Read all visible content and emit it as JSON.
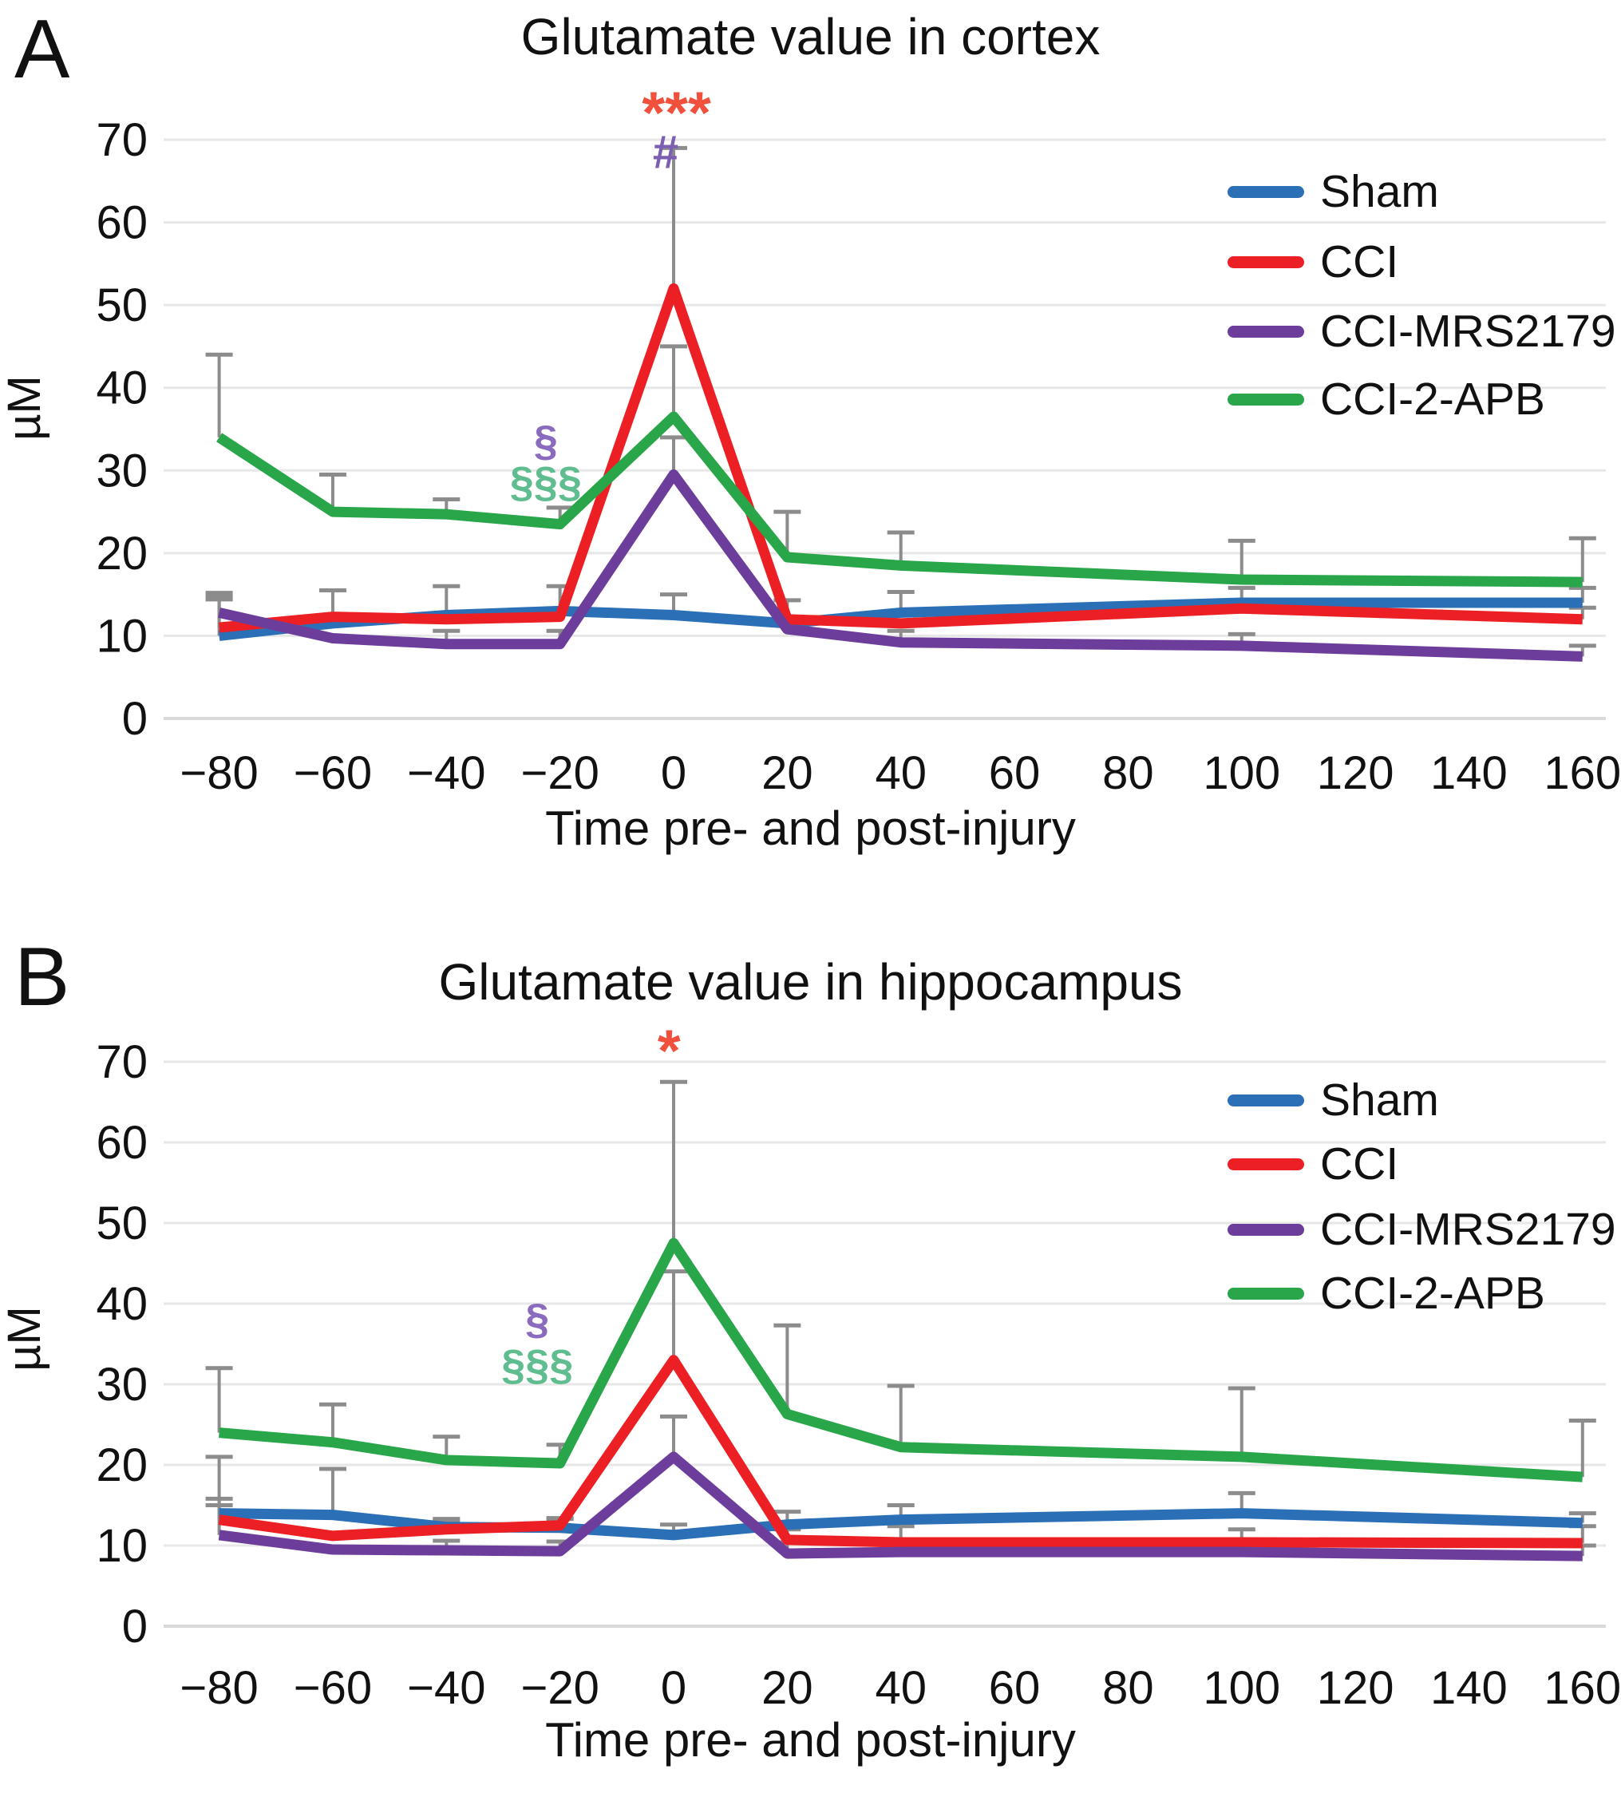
{
  "panels": [
    {
      "letter": "A"
    },
    {
      "letter": "B"
    }
  ],
  "chart_data": [
    {
      "type": "line",
      "title": "Glutamate value in cortex",
      "xlabel": "Time pre- and post-injury",
      "ylabel": "µM",
      "ylim": [
        0,
        70
      ],
      "xlim": [
        -90,
        167
      ],
      "grid": true,
      "legend_position": "top-right",
      "y_ticks": [
        0,
        10,
        20,
        30,
        40,
        50,
        60,
        70
      ],
      "y_ticklabels": [
        "0",
        "10",
        "20",
        "30",
        "40",
        "50",
        "60",
        "70"
      ],
      "x_ticks": [
        -80,
        -60,
        -40,
        -20,
        0,
        20,
        40,
        60,
        80,
        100,
        120,
        140,
        160
      ],
      "x_ticklabels": [
        "−80",
        "−60",
        "−40",
        "−20",
        "0",
        "20",
        "40",
        "60",
        "80",
        "100",
        "120",
        "140",
        "160"
      ],
      "x": [
        -80,
        -60,
        -40,
        -20,
        0,
        20,
        40,
        100,
        160
      ],
      "series": [
        {
          "name": "Sham",
          "color": "#2B70B7",
          "values": [
            10,
            11.5,
            12.5,
            13,
            12.5,
            11.5,
            12.8,
            14,
            14
          ],
          "error_upper": [
            14.8,
            15.5,
            16,
            16,
            15,
            14.3,
            15.3,
            15.8,
            15.8
          ]
        },
        {
          "name": "CCI",
          "color": "#EC2024",
          "values": [
            11,
            12.3,
            12,
            12.3,
            52,
            12,
            11.5,
            13.3,
            12
          ],
          "error_upper": [
            14.4,
            null,
            null,
            null,
            69,
            null,
            null,
            null,
            13.4
          ]
        },
        {
          "name": "CCI-MRS2179",
          "color": "#6C3D9B",
          "values": [
            12.8,
            9.7,
            9,
            9,
            29.5,
            10.8,
            9.2,
            8.8,
            7.5
          ],
          "error_upper": [
            15.2,
            null,
            10.6,
            10.6,
            34,
            null,
            10.6,
            10.2,
            8.8
          ]
        },
        {
          "name": "CCI-2-APB",
          "color": "#2AA64A",
          "values": [
            34,
            25,
            24.7,
            23.5,
            36.5,
            19.5,
            18.5,
            16.8,
            16.5
          ],
          "error_upper": [
            44,
            29.5,
            26.5,
            25.5,
            45,
            25,
            22.5,
            21.5,
            21.8
          ]
        }
      ],
      "annotations": [
        {
          "text": "***",
          "x": 0.5,
          "y": 73.4,
          "color": "#F0503C"
        },
        {
          "text": "#",
          "x": -1.4,
          "y": 68.6,
          "color": "#7D5FB2"
        },
        {
          "text": "§",
          "x": -22.5,
          "y": 33.7,
          "color": "#8A6BBE"
        },
        {
          "text": "§§§",
          "x": -22.5,
          "y": 28.7,
          "color": "#5FBD8F"
        }
      ]
    },
    {
      "type": "line",
      "title": "Glutamate value in hippocampus",
      "xlabel": "Time pre- and post-injury",
      "ylabel": "µM",
      "ylim": [
        0,
        70
      ],
      "xlim": [
        -90,
        167
      ],
      "grid": true,
      "legend_position": "top-right",
      "y_ticks": [
        0,
        10,
        20,
        30,
        40,
        50,
        60,
        70
      ],
      "y_ticklabels": [
        "0",
        "10",
        "20",
        "30",
        "40",
        "50",
        "60",
        "70"
      ],
      "x_ticks": [
        -80,
        -60,
        -40,
        -20,
        0,
        20,
        40,
        60,
        80,
        100,
        120,
        140,
        160
      ],
      "x_ticklabels": [
        "−80",
        "−60",
        "−40",
        "−20",
        "0",
        "20",
        "40",
        "60",
        "80",
        "100",
        "120",
        "140",
        "160"
      ],
      "x": [
        -80,
        -60,
        -40,
        -20,
        0,
        20,
        40,
        100,
        160
      ],
      "series": [
        {
          "name": "Sham",
          "color": "#2B70B7",
          "values": [
            14,
            13.8,
            12.3,
            12.2,
            11.3,
            12.6,
            13.2,
            14,
            12.8
          ],
          "error_upper": [
            21,
            19.5,
            13.3,
            13.4,
            12.6,
            14.2,
            15,
            16.5,
            14
          ]
        },
        {
          "name": "CCI",
          "color": "#EC2024",
          "values": [
            13.2,
            11.2,
            12,
            12.5,
            33,
            10.7,
            10.4,
            10.4,
            10.3
          ],
          "error_upper": [
            15.8,
            null,
            13,
            13.3,
            44,
            12,
            12.4,
            12,
            12.4
          ]
        },
        {
          "name": "CCI-MRS2179",
          "color": "#6C3D9B",
          "values": [
            11.3,
            9.5,
            9.4,
            9.3,
            21,
            9,
            9.2,
            9.2,
            8.7
          ],
          "error_upper": [
            15,
            null,
            10.6,
            10.5,
            26,
            10.4,
            null,
            null,
            10
          ]
        },
        {
          "name": "CCI-2-APB",
          "color": "#2AA64A",
          "values": [
            24,
            22.8,
            20.6,
            20.2,
            47.5,
            26.3,
            22.2,
            21,
            18.5
          ],
          "error_upper": [
            32,
            27.5,
            23.5,
            22.5,
            67.5,
            37.3,
            29.8,
            29.5,
            25.5
          ]
        }
      ],
      "annotations": [
        {
          "text": "*",
          "x": -0.8,
          "y": 71.5,
          "color": "#F0503C"
        },
        {
          "text": "§",
          "x": -24,
          "y": 38.2,
          "color": "#8A6BBE"
        },
        {
          "text": "§§§",
          "x": -24,
          "y": 32.5,
          "color": "#5FBD8F"
        }
      ]
    }
  ]
}
